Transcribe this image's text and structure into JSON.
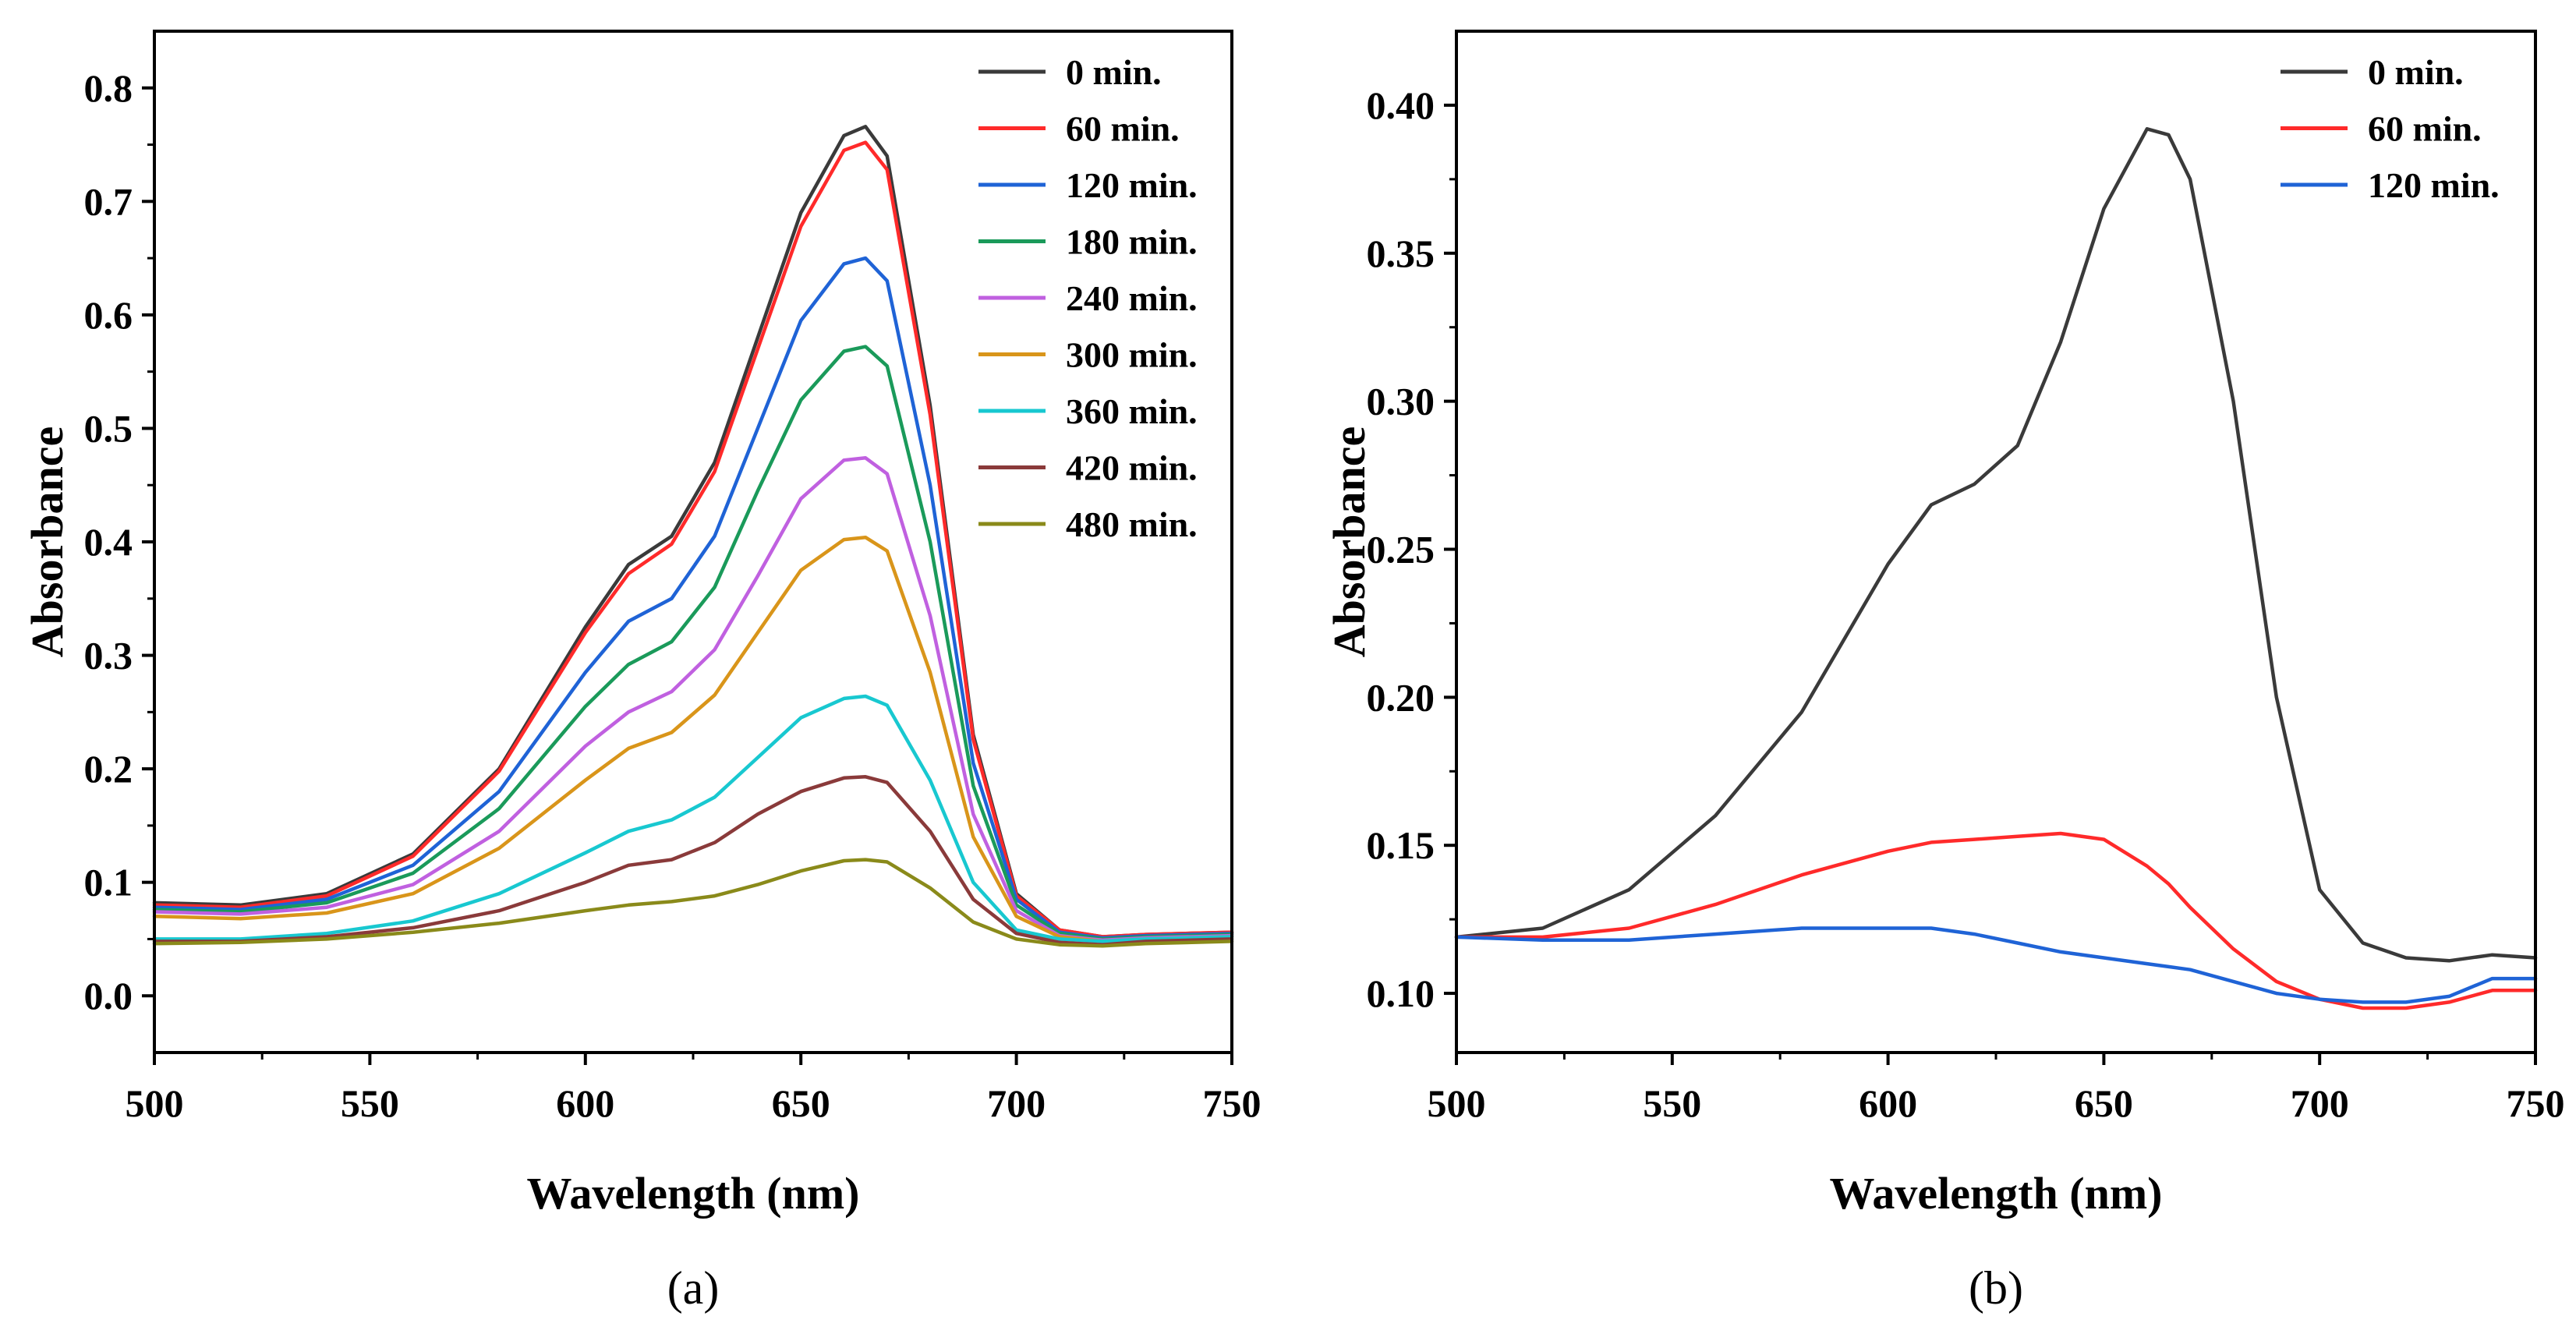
{
  "chart_data": [
    {
      "type": "line",
      "panel_label": "(a)",
      "xlabel": "Wavelength (nm)",
      "ylabel": "Absorbance",
      "xlim": [
        500,
        750
      ],
      "ylim": [
        -0.05,
        0.85
      ],
      "xticks": [
        500,
        550,
        600,
        650,
        700,
        750
      ],
      "xtick_labels": [
        "500",
        "550",
        "600",
        "650",
        "700",
        "750"
      ],
      "yticks": [
        0.0,
        0.1,
        0.2,
        0.3,
        0.4,
        0.5,
        0.6,
        0.7,
        0.8
      ],
      "ytick_labels": [
        "0.0",
        "0.1",
        "0.2",
        "0.3",
        "0.4",
        "0.5",
        "0.6",
        "0.7",
        "0.8"
      ],
      "grid": false,
      "legend_position": "top-right",
      "x": [
        500,
        520,
        540,
        560,
        580,
        600,
        610,
        620,
        630,
        640,
        650,
        660,
        665,
        670,
        680,
        690,
        700,
        710,
        720,
        730,
        750
      ],
      "series": [
        {
          "name": "0 min.",
          "color": "#3a3a3a",
          "values": [
            0.082,
            0.08,
            0.09,
            0.125,
            0.2,
            0.325,
            0.38,
            0.405,
            0.47,
            0.58,
            0.69,
            0.758,
            0.766,
            0.74,
            0.52,
            0.23,
            0.09,
            0.058,
            0.052,
            0.054,
            0.056
          ]
        },
        {
          "name": "60 min.",
          "color": "#ff2a2a",
          "values": [
            0.08,
            0.078,
            0.088,
            0.123,
            0.198,
            0.32,
            0.372,
            0.398,
            0.462,
            0.57,
            0.678,
            0.745,
            0.752,
            0.728,
            0.512,
            0.226,
            0.088,
            0.058,
            0.052,
            0.054,
            0.056
          ]
        },
        {
          "name": "120 min.",
          "color": "#1f63d6",
          "values": [
            0.078,
            0.076,
            0.085,
            0.115,
            0.18,
            0.285,
            0.33,
            0.35,
            0.405,
            0.5,
            0.595,
            0.645,
            0.65,
            0.63,
            0.45,
            0.205,
            0.085,
            0.056,
            0.051,
            0.053,
            0.055
          ]
        },
        {
          "name": "180 min.",
          "color": "#1a9a5a",
          "values": [
            0.076,
            0.074,
            0.082,
            0.108,
            0.165,
            0.255,
            0.292,
            0.312,
            0.36,
            0.445,
            0.525,
            0.568,
            0.572,
            0.555,
            0.4,
            0.185,
            0.08,
            0.055,
            0.05,
            0.052,
            0.054
          ]
        },
        {
          "name": "240 min.",
          "color": "#c060e0",
          "values": [
            0.074,
            0.072,
            0.078,
            0.098,
            0.145,
            0.22,
            0.25,
            0.268,
            0.305,
            0.37,
            0.438,
            0.472,
            0.474,
            0.46,
            0.335,
            0.16,
            0.075,
            0.053,
            0.049,
            0.051,
            0.053
          ]
        },
        {
          "name": "300 min.",
          "color": "#d9951a",
          "values": [
            0.07,
            0.068,
            0.073,
            0.09,
            0.13,
            0.19,
            0.218,
            0.232,
            0.265,
            0.32,
            0.375,
            0.402,
            0.404,
            0.392,
            0.285,
            0.14,
            0.07,
            0.052,
            0.048,
            0.05,
            0.052
          ]
        },
        {
          "name": "360 min.",
          "color": "#18c8d0",
          "values": [
            0.05,
            0.05,
            0.055,
            0.066,
            0.09,
            0.126,
            0.145,
            0.155,
            0.175,
            0.21,
            0.245,
            0.262,
            0.264,
            0.256,
            0.19,
            0.1,
            0.058,
            0.05,
            0.048,
            0.05,
            0.052
          ]
        },
        {
          "name": "420 min.",
          "color": "#8a3a3a",
          "values": [
            0.048,
            0.048,
            0.052,
            0.06,
            0.075,
            0.1,
            0.115,
            0.12,
            0.135,
            0.16,
            0.18,
            0.192,
            0.193,
            0.188,
            0.145,
            0.085,
            0.055,
            0.047,
            0.045,
            0.048,
            0.05
          ]
        },
        {
          "name": "480 min.",
          "color": "#8a8a1a",
          "values": [
            0.046,
            0.047,
            0.05,
            0.056,
            0.064,
            0.075,
            0.08,
            0.083,
            0.088,
            0.098,
            0.11,
            0.119,
            0.12,
            0.118,
            0.095,
            0.065,
            0.05,
            0.045,
            0.044,
            0.046,
            0.048
          ]
        }
      ]
    },
    {
      "type": "line",
      "panel_label": "(b)",
      "xlabel": "Wavelength (nm)",
      "ylabel": "Absorbance",
      "xlim": [
        500,
        750
      ],
      "ylim": [
        0.08,
        0.425
      ],
      "xticks": [
        500,
        550,
        600,
        650,
        700,
        750
      ],
      "xtick_labels": [
        "500",
        "550",
        "600",
        "650",
        "700",
        "750"
      ],
      "yticks": [
        0.1,
        0.15,
        0.2,
        0.25,
        0.3,
        0.35,
        0.4
      ],
      "ytick_labels": [
        "0.10",
        "0.15",
        "0.20",
        "0.25",
        "0.30",
        "0.35",
        "0.40"
      ],
      "grid": false,
      "legend_position": "top-right",
      "x": [
        500,
        520,
        540,
        560,
        580,
        600,
        610,
        620,
        630,
        640,
        650,
        660,
        665,
        670,
        680,
        690,
        700,
        710,
        720,
        730,
        740,
        750
      ],
      "series": [
        {
          "name": "0 min.",
          "color": "#3a3a3a",
          "values": [
            0.119,
            0.122,
            0.135,
            0.16,
            0.195,
            0.245,
            0.265,
            0.272,
            0.285,
            0.32,
            0.365,
            0.392,
            0.39,
            0.375,
            0.3,
            0.2,
            0.135,
            0.117,
            0.112,
            0.111,
            0.113,
            0.112
          ]
        },
        {
          "name": "60 min.",
          "color": "#ff2a2a",
          "values": [
            0.119,
            0.119,
            0.122,
            0.13,
            0.14,
            0.148,
            0.151,
            0.152,
            0.153,
            0.154,
            0.152,
            0.143,
            0.137,
            0.129,
            0.115,
            0.104,
            0.098,
            0.095,
            0.095,
            0.097,
            0.101,
            0.101
          ]
        },
        {
          "name": "120 min.",
          "color": "#1f63d6",
          "values": [
            0.119,
            0.118,
            0.118,
            0.12,
            0.122,
            0.122,
            0.122,
            0.12,
            0.117,
            0.114,
            0.112,
            0.11,
            0.109,
            0.108,
            0.104,
            0.1,
            0.098,
            0.097,
            0.097,
            0.099,
            0.105,
            0.105
          ]
        }
      ]
    }
  ]
}
